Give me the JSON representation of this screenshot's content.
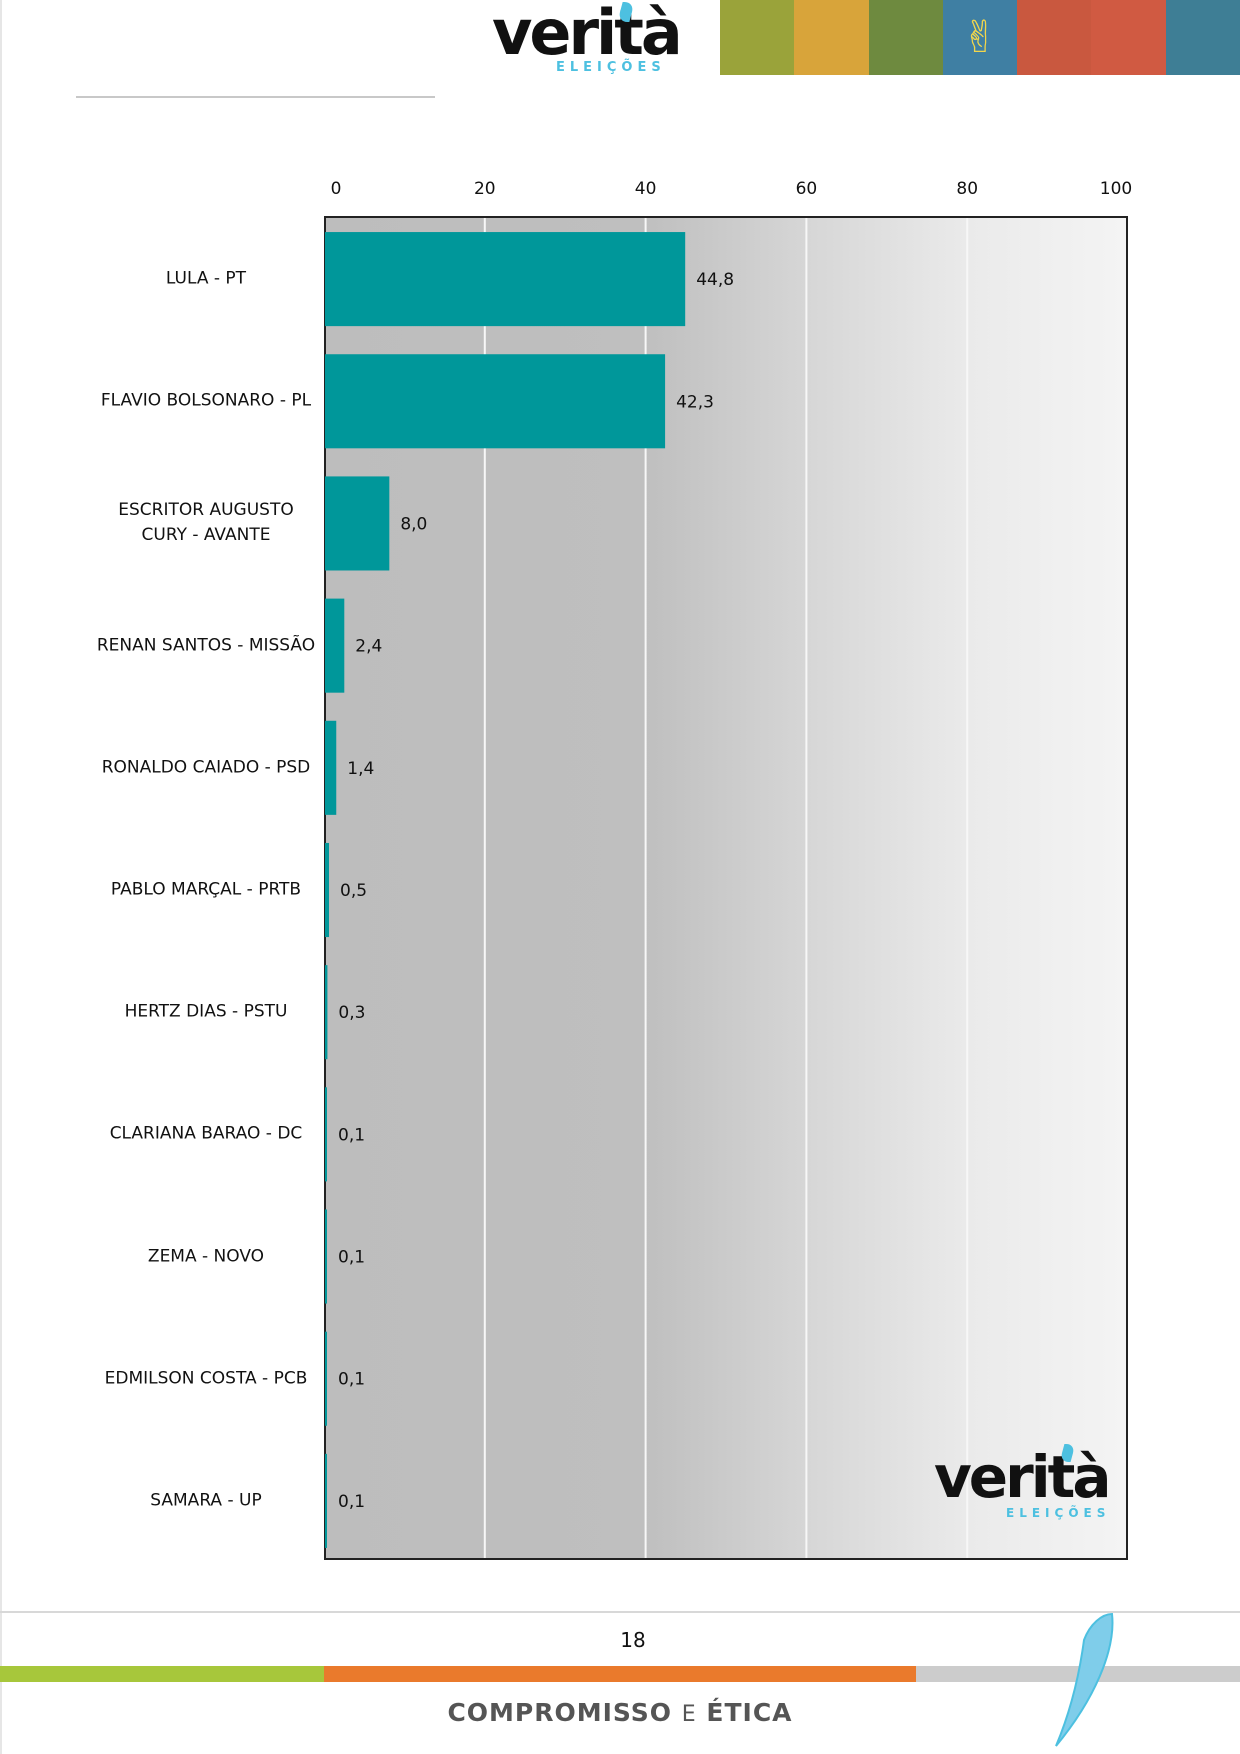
{
  "brand": {
    "name": "verità",
    "subtitle": "ELEIÇÕES"
  },
  "watermark": {
    "name": "verità",
    "subtitle": "ELEIÇÕES"
  },
  "footer": {
    "page_number": "18",
    "motto_a": "COMPROMISSO",
    "motto_e": "E",
    "motto_b": "ÉTICA"
  },
  "colors": {
    "bar": "#00979a",
    "accent": "#4dc0e0",
    "band_green": "#a7c73b",
    "band_orange": "#ea7a2c",
    "band_grey": "#cccccc"
  },
  "icons": [
    "peace-sign-icon",
    "quill-icon"
  ],
  "chart_data": {
    "type": "bar",
    "orientation": "horizontal",
    "x_axis_position": "top",
    "xlim": [
      0,
      100
    ],
    "xticks": [
      0,
      20,
      40,
      60,
      80,
      100
    ],
    "grid": true,
    "categories": [
      "LULA - PT",
      "FLAVIO BOLSONARO - PL",
      "ESCRITOR AUGUSTO CURY - AVANTE",
      "RENAN SANTOS - MISSÃO",
      "RONALDO CAIADO - PSD",
      "PABLO MARÇAL - PRTB",
      "HERTZ DIAS - PSTU",
      "CLARIANA BARAO - DC",
      "ZEMA - NOVO",
      "EDMILSON COSTA - PCB",
      "SAMARA - UP"
    ],
    "values": [
      44.8,
      42.3,
      8.0,
      2.4,
      1.4,
      0.5,
      0.3,
      0.1,
      0.1,
      0.1,
      0.1
    ],
    "value_labels": [
      "44,8",
      "42,3",
      "8,0",
      "2,4",
      "1,4",
      "0,5",
      "0,3",
      "0,1",
      "0,1",
      "0,1",
      "0,1"
    ]
  }
}
